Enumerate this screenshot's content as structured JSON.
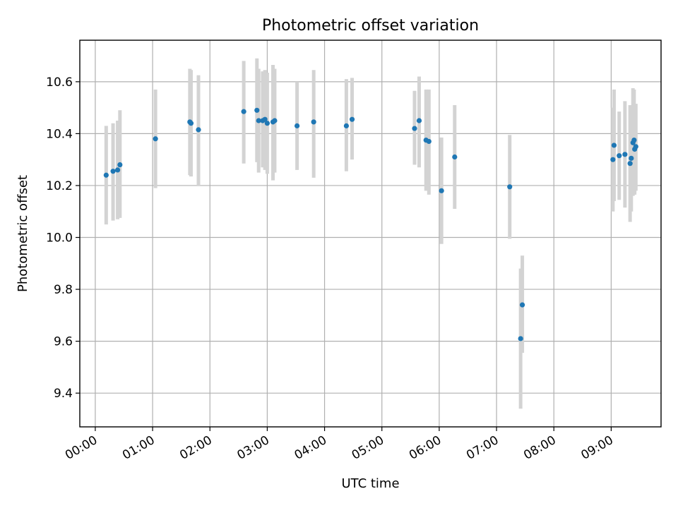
{
  "chart_data": {
    "type": "scatter",
    "title": "Photometric offset variation",
    "xlabel": "UTC time",
    "ylabel": "Photometric offset",
    "x_unit": "hours",
    "xlim": [
      -0.27,
      9.87
    ],
    "ylim": [
      9.27,
      10.76
    ],
    "x_ticks": [
      {
        "value": 0,
        "label": "00:00"
      },
      {
        "value": 1,
        "label": "01:00"
      },
      {
        "value": 2,
        "label": "02:00"
      },
      {
        "value": 3,
        "label": "03:00"
      },
      {
        "value": 4,
        "label": "04:00"
      },
      {
        "value": 5,
        "label": "05:00"
      },
      {
        "value": 6,
        "label": "06:00"
      },
      {
        "value": 7,
        "label": "07:00"
      },
      {
        "value": 8,
        "label": "08:00"
      },
      {
        "value": 9,
        "label": "09:00"
      }
    ],
    "y_ticks": [
      {
        "value": 9.4,
        "label": "9.4"
      },
      {
        "value": 9.6,
        "label": "9.6"
      },
      {
        "value": 9.8,
        "label": "9.8"
      },
      {
        "value": 10.0,
        "label": "10.0"
      },
      {
        "value": 10.2,
        "label": "10.2"
      },
      {
        "value": 10.4,
        "label": "10.4"
      },
      {
        "value": 10.6,
        "label": "10.6"
      }
    ],
    "grid": true,
    "colors": {
      "point": "#1f77b4",
      "errorbar": "#d3d3d3"
    },
    "points": [
      {
        "x": 0.19,
        "y": 10.24,
        "lo": 10.05,
        "hi": 10.43
      },
      {
        "x": 0.31,
        "y": 10.255,
        "lo": 10.065,
        "hi": 10.44
      },
      {
        "x": 0.39,
        "y": 10.26,
        "lo": 10.07,
        "hi": 10.45
      },
      {
        "x": 0.43,
        "y": 10.28,
        "lo": 10.075,
        "hi": 10.49
      },
      {
        "x": 1.05,
        "y": 10.38,
        "lo": 10.19,
        "hi": 10.57
      },
      {
        "x": 1.65,
        "y": 10.445,
        "lo": 10.24,
        "hi": 10.65
      },
      {
        "x": 1.67,
        "y": 10.44,
        "lo": 10.235,
        "hi": 10.645
      },
      {
        "x": 1.8,
        "y": 10.415,
        "lo": 10.2,
        "hi": 10.625
      },
      {
        "x": 2.59,
        "y": 10.485,
        "lo": 10.285,
        "hi": 10.68
      },
      {
        "x": 2.82,
        "y": 10.49,
        "lo": 10.29,
        "hi": 10.69
      },
      {
        "x": 2.85,
        "y": 10.45,
        "lo": 10.25,
        "hi": 10.65
      },
      {
        "x": 2.92,
        "y": 10.45,
        "lo": 10.27,
        "hi": 10.64
      },
      {
        "x": 2.96,
        "y": 10.455,
        "lo": 10.26,
        "hi": 10.645
      },
      {
        "x": 3.0,
        "y": 10.44,
        "lo": 10.245,
        "hi": 10.635
      },
      {
        "x": 3.1,
        "y": 10.445,
        "lo": 10.22,
        "hi": 10.665
      },
      {
        "x": 3.13,
        "y": 10.45,
        "lo": 10.25,
        "hi": 10.65
      },
      {
        "x": 3.52,
        "y": 10.43,
        "lo": 10.26,
        "hi": 10.6
      },
      {
        "x": 3.81,
        "y": 10.445,
        "lo": 10.23,
        "hi": 10.645
      },
      {
        "x": 4.38,
        "y": 10.43,
        "lo": 10.255,
        "hi": 10.61
      },
      {
        "x": 4.48,
        "y": 10.455,
        "lo": 10.3,
        "hi": 10.615
      },
      {
        "x": 5.57,
        "y": 10.42,
        "lo": 10.28,
        "hi": 10.565
      },
      {
        "x": 5.65,
        "y": 10.45,
        "lo": 10.27,
        "hi": 10.62
      },
      {
        "x": 5.77,
        "y": 10.375,
        "lo": 10.18,
        "hi": 10.57
      },
      {
        "x": 5.82,
        "y": 10.37,
        "lo": 10.165,
        "hi": 10.57
      },
      {
        "x": 6.04,
        "y": 10.18,
        "lo": 9.975,
        "hi": 10.385
      },
      {
        "x": 6.27,
        "y": 10.31,
        "lo": 10.11,
        "hi": 10.51
      },
      {
        "x": 7.23,
        "y": 10.195,
        "lo": 9.995,
        "hi": 10.395
      },
      {
        "x": 7.42,
        "y": 9.61,
        "lo": 9.34,
        "hi": 9.88
      },
      {
        "x": 7.45,
        "y": 9.74,
        "lo": 9.555,
        "hi": 9.93
      },
      {
        "x": 9.03,
        "y": 10.3,
        "lo": 10.1,
        "hi": 10.5
      },
      {
        "x": 9.05,
        "y": 10.355,
        "lo": 10.14,
        "hi": 10.57
      },
      {
        "x": 9.14,
        "y": 10.315,
        "lo": 10.145,
        "hi": 10.485
      },
      {
        "x": 9.24,
        "y": 10.32,
        "lo": 10.115,
        "hi": 10.525
      },
      {
        "x": 9.33,
        "y": 10.285,
        "lo": 10.06,
        "hi": 10.51
      },
      {
        "x": 9.35,
        "y": 10.305,
        "lo": 10.1,
        "hi": 10.51
      },
      {
        "x": 9.38,
        "y": 10.365,
        "lo": 10.16,
        "hi": 10.575
      },
      {
        "x": 9.4,
        "y": 10.375,
        "lo": 10.165,
        "hi": 10.57
      },
      {
        "x": 9.41,
        "y": 10.34,
        "lo": 10.165,
        "hi": 10.51
      },
      {
        "x": 9.43,
        "y": 10.35,
        "lo": 10.18,
        "hi": 10.515
      }
    ]
  }
}
